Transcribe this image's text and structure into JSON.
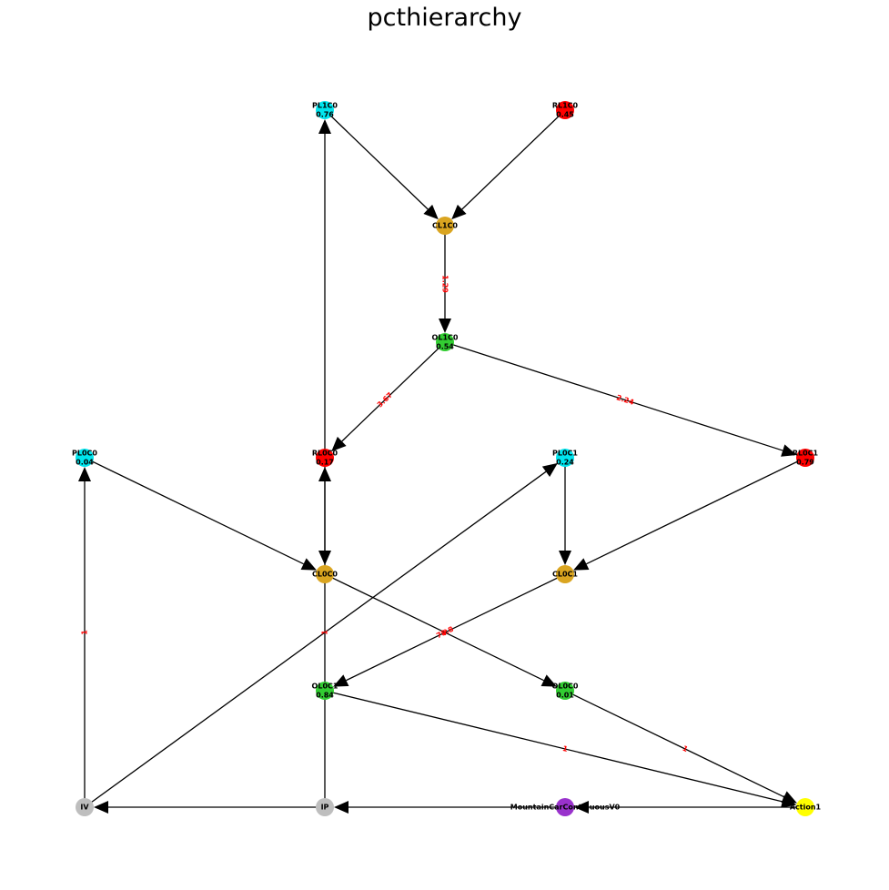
{
  "title": "pcthierarchy",
  "colors": {
    "cyan": "#00e5ee",
    "red": "#ff0000",
    "orange": "#daa520",
    "green": "#32cd32",
    "grey": "#bebebe",
    "purple": "#9932cc",
    "yellow": "#ffff00",
    "edge": "#000000",
    "edge_label": "#ff0000"
  },
  "nodes": [
    {
      "id": "PL1C0",
      "label": "PL1C0",
      "value": "0.76",
      "color": "cyan"
    },
    {
      "id": "RL1C0",
      "label": "RL1C0",
      "value": "0.45",
      "color": "red"
    },
    {
      "id": "CL1C0",
      "label": "CL1C0",
      "value": "",
      "color": "orange"
    },
    {
      "id": "OL1C0",
      "label": "OL1C0",
      "value": "0.54",
      "color": "green"
    },
    {
      "id": "PL0C0",
      "label": "PL0C0",
      "value": "0.04",
      "color": "cyan"
    },
    {
      "id": "RL0C0",
      "label": "RL0C0",
      "value": "0.17",
      "color": "red"
    },
    {
      "id": "PL0C1",
      "label": "PL0C1",
      "value": "0.24",
      "color": "cyan"
    },
    {
      "id": "RL0C1",
      "label": "RL0C1",
      "value": "0.79",
      "color": "red"
    },
    {
      "id": "CL0C0",
      "label": "CL0C0",
      "value": "",
      "color": "orange"
    },
    {
      "id": "CL0C1",
      "label": "CL0C1",
      "value": "",
      "color": "orange"
    },
    {
      "id": "OL0C1",
      "label": "OL0C1",
      "value": "0.84",
      "color": "green"
    },
    {
      "id": "OL0C0",
      "label": "OL0C0",
      "value": "0.01",
      "color": "green"
    },
    {
      "id": "IV",
      "label": "IV",
      "value": "",
      "color": "grey"
    },
    {
      "id": "IP",
      "label": "IP",
      "value": "",
      "color": "grey"
    },
    {
      "id": "MountainCarContinuousV0",
      "label": "MountainCarContinuousV0",
      "value": "",
      "color": "purple"
    },
    {
      "id": "Action1",
      "label": "Action1",
      "value": "",
      "color": "yellow"
    }
  ],
  "edges": [
    {
      "from": "PL1C0",
      "to": "CL1C0",
      "label": ""
    },
    {
      "from": "RL1C0",
      "to": "CL1C0",
      "label": ""
    },
    {
      "from": "CL1C0",
      "to": "OL1C0",
      "label": "1.29"
    },
    {
      "from": "OL1C0",
      "to": "RL0C0",
      "label": "3.67"
    },
    {
      "from": "OL1C0",
      "to": "RL0C1",
      "label": "2.24"
    },
    {
      "from": "RL0C0",
      "to": "PL1C0",
      "label": ""
    },
    {
      "from": "RL0C0",
      "to": "CL0C0",
      "label": ""
    },
    {
      "from": "PL0C0",
      "to": "CL0C0",
      "label": ""
    },
    {
      "from": "PL0C1",
      "to": "CL0C1",
      "label": ""
    },
    {
      "from": "RL0C1",
      "to": "CL0C1",
      "label": ""
    },
    {
      "from": "CL0C0",
      "to": "OL0C0",
      "label": "1"
    },
    {
      "from": "CL0C1",
      "to": "OL0C1",
      "label": "78.8"
    },
    {
      "from": "IP",
      "to": "RL0C0",
      "label": "1"
    },
    {
      "from": "IV",
      "to": "PL0C0",
      "label": "1"
    },
    {
      "from": "IV",
      "to": "PL0C1",
      "label": ""
    },
    {
      "from": "OL0C1",
      "to": "Action1",
      "label": "1"
    },
    {
      "from": "OL0C0",
      "to": "Action1",
      "label": "1"
    },
    {
      "from": "Action1",
      "to": "MountainCarContinuousV0",
      "label": ""
    },
    {
      "from": "MountainCarContinuousV0",
      "to": "IP",
      "label": ""
    },
    {
      "from": "IP",
      "to": "IV",
      "label": ""
    }
  ]
}
